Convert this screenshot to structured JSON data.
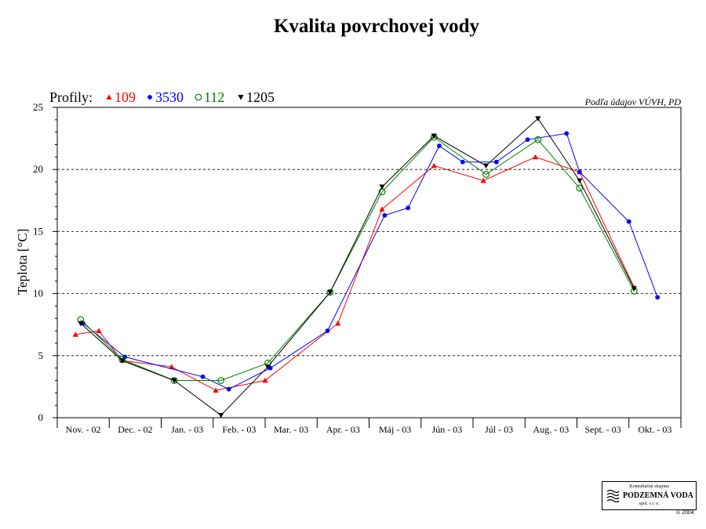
{
  "chart_data": {
    "type": "line",
    "title": "Kvalita povrchovej vody",
    "source_note": "Podľa údajov VÚVH, PD",
    "ylabel": "Teplota [°C]",
    "xlabel": "",
    "ylim": [
      0,
      25
    ],
    "yticks": [
      0,
      5,
      10,
      15,
      20,
      25
    ],
    "grid": "horizontal dashed at 5, 10, 15, 20",
    "legend_prefix": "Profily:",
    "legend_position": "top-left",
    "categories": [
      "Nov. - 02",
      "Dec. - 02",
      "Jan. - 03",
      "Feb. - 03",
      "Mar. - 03",
      "Apr. - 03",
      "Máj - 03",
      "Jún - 03",
      "Júl - 03",
      "Aug. - 03",
      "Sept. - 03",
      "Okt. - 03"
    ],
    "series": [
      {
        "name": "109",
        "color": "#ff0000",
        "marker": "triangle-up",
        "points": [
          [
            0.35,
            6.7
          ],
          [
            0.8,
            7.0
          ],
          [
            1.25,
            4.6
          ],
          [
            2.2,
            4.1
          ],
          [
            3.05,
            2.2
          ],
          [
            4.0,
            3.0
          ],
          [
            5.4,
            7.6
          ],
          [
            6.25,
            16.8
          ],
          [
            7.25,
            20.3
          ],
          [
            8.2,
            19.1
          ],
          [
            9.2,
            21.0
          ],
          [
            10.05,
            19.8
          ],
          [
            11.1,
            10.5
          ]
        ]
      },
      {
        "name": "3530",
        "color": "#0000ff",
        "marker": "circle-filled",
        "points": [
          [
            0.5,
            7.6
          ],
          [
            1.3,
            4.9
          ],
          [
            2.8,
            3.3
          ],
          [
            3.3,
            2.3
          ],
          [
            4.1,
            4.0
          ],
          [
            5.2,
            7.0
          ],
          [
            6.3,
            16.3
          ],
          [
            6.75,
            16.9
          ],
          [
            7.35,
            21.9
          ],
          [
            7.8,
            20.6
          ],
          [
            8.45,
            20.6
          ],
          [
            9.05,
            22.4
          ],
          [
            9.8,
            22.9
          ],
          [
            10.05,
            19.8
          ],
          [
            11.0,
            15.8
          ],
          [
            11.55,
            9.7
          ]
        ]
      },
      {
        "name": "112",
        "color": "#008000",
        "marker": "circle-open",
        "points": [
          [
            0.45,
            7.9
          ],
          [
            1.25,
            4.7
          ],
          [
            2.25,
            3.0
          ],
          [
            3.15,
            3.0
          ],
          [
            4.05,
            4.4
          ],
          [
            5.25,
            10.1
          ],
          [
            6.25,
            18.2
          ],
          [
            7.25,
            22.6
          ],
          [
            8.25,
            19.6
          ],
          [
            9.25,
            22.4
          ],
          [
            10.05,
            18.5
          ],
          [
            11.1,
            10.2
          ]
        ]
      },
      {
        "name": "1205",
        "color": "#000000",
        "marker": "triangle-down",
        "points": [
          [
            0.45,
            7.6
          ],
          [
            1.25,
            4.6
          ],
          [
            2.25,
            3.0
          ],
          [
            3.15,
            0.2
          ],
          [
            4.05,
            4.1
          ],
          [
            5.25,
            10.1
          ],
          [
            6.25,
            18.6
          ],
          [
            7.25,
            22.7
          ],
          [
            8.25,
            20.3
          ],
          [
            9.25,
            24.1
          ],
          [
            10.05,
            19.1
          ],
          [
            11.1,
            10.4
          ]
        ]
      }
    ]
  },
  "footer": {
    "logo_line1": "Konzultačná skupina",
    "logo_line2": "PODZEMNÁ VODA",
    "logo_line3": "spol. s r. o.",
    "copyright": "© 2004"
  }
}
